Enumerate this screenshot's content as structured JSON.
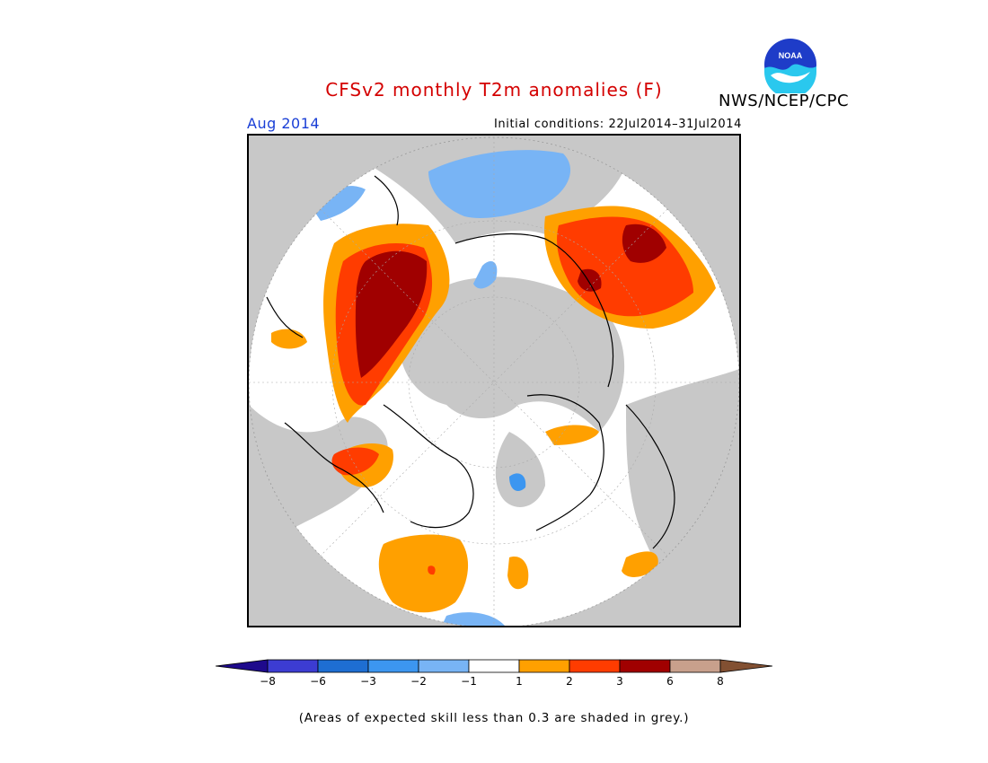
{
  "header": {
    "title": "CFSv2 monthly T2m anomalies (F)",
    "agency": "NWS/NCEP/CPC",
    "logo_text": "NOAA"
  },
  "subheader": {
    "valid_month": "Aug 2014",
    "initial_conditions": "Initial conditions: 22Jul2014–31Jul2014"
  },
  "map": {
    "projection": "north-polar-stereographic",
    "variable": "2m temperature anomaly",
    "units": "F",
    "colors": {
      "no_skill_grey": "#c8c8c8",
      "coastline": "#000000",
      "neutral": "#ffffff"
    }
  },
  "legend": {
    "tick_labels": [
      "−8",
      "−6",
      "−3",
      "−2",
      "−1",
      "1",
      "2",
      "3",
      "6",
      "8"
    ],
    "bins": [
      {
        "range": "< -8",
        "color": "#1e0a8c"
      },
      {
        "range": "-8 to -6",
        "color": "#3c3cd2"
      },
      {
        "range": "-6 to -3",
        "color": "#1e6ed2"
      },
      {
        "range": "-3 to -2",
        "color": "#3c96f0"
      },
      {
        "range": "-2 to -1",
        "color": "#78b4f5"
      },
      {
        "range": "-1 to 1",
        "color": "#ffffff"
      },
      {
        "range": "1 to 2",
        "color": "#ffa000"
      },
      {
        "range": "2 to 3",
        "color": "#ff3c00"
      },
      {
        "range": "3 to 6",
        "color": "#a00000"
      },
      {
        "range": "6 to 8",
        "color": "#c8a08c"
      },
      {
        "range": "> 8",
        "color": "#825032"
      }
    ]
  },
  "footnote": "(Areas of expected skill less than 0.3 are shaded in grey.)"
}
